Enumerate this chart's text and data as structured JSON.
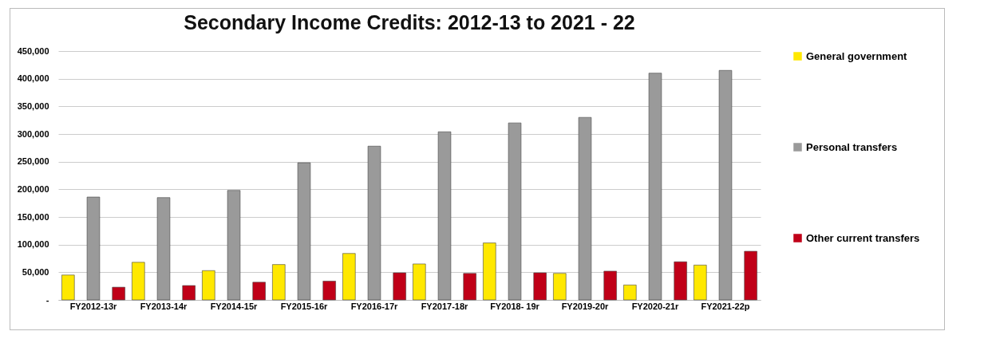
{
  "chart_data": {
    "type": "bar",
    "title": "Secondary Income Credits: 2012-13 to 2021 - 22",
    "categories": [
      "FY2012-13r",
      "FY2013-14r",
      "FY2014-15r",
      "FY2015-16r",
      "FY2016-17r",
      "FY2017-18r",
      "FY2018- 19r",
      "FY2019-20r",
      "FY2020-21r",
      "FY2021-22p"
    ],
    "series": [
      {
        "name": "General government",
        "color": "#ffe800",
        "values": [
          45000,
          68000,
          53000,
          64000,
          84000,
          65000,
          103000,
          48000,
          27000,
          63000
        ]
      },
      {
        "name": "Personal transfers",
        "color": "#9a9a9a",
        "values": [
          186000,
          185000,
          198000,
          248000,
          278000,
          304000,
          320000,
          330000,
          410000,
          415000
        ]
      },
      {
        "name": "Other current transfers",
        "color": "#c00018",
        "values": [
          23000,
          26000,
          32000,
          34000,
          49000,
          48000,
          49000,
          52000,
          69000,
          88000
        ]
      }
    ],
    "ylim": [
      0,
      450000
    ],
    "yticks": [
      {
        "value": 0,
        "label": "-"
      },
      {
        "value": 50000,
        "label": "50,000"
      },
      {
        "value": 100000,
        "label": "100,000"
      },
      {
        "value": 150000,
        "label": "150,000"
      },
      {
        "value": 200000,
        "label": "200,000"
      },
      {
        "value": 250000,
        "label": "250,000"
      },
      {
        "value": 300000,
        "label": "300,000"
      },
      {
        "value": 350000,
        "label": "350,000"
      },
      {
        "value": 400000,
        "label": "400,000"
      },
      {
        "value": 450000,
        "label": "450,000"
      }
    ],
    "grid": "y",
    "legend": "right"
  }
}
